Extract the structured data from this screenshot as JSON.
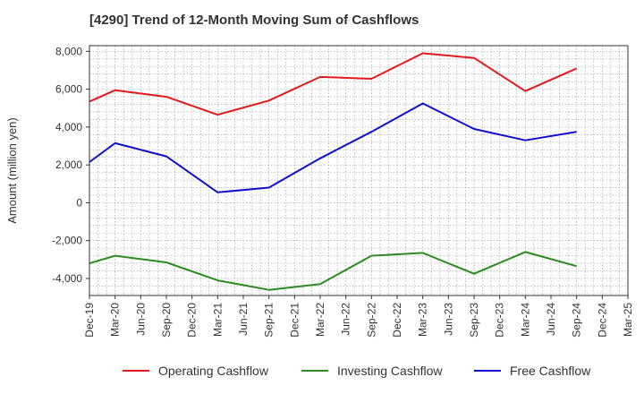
{
  "chart_data": {
    "type": "line",
    "title": "[4290]  Trend of 12-Month Moving Sum of Cashflows",
    "xlabel": "",
    "ylabel": "Amount (million yen)",
    "categories": [
      "Dec-19",
      "Mar-20",
      "Jun-20",
      "Sep-20",
      "Dec-20",
      "Mar-21",
      "Jun-21",
      "Sep-21",
      "Dec-21",
      "Mar-22",
      "Jun-22",
      "Sep-22",
      "Dec-22",
      "Mar-23",
      "Jun-23",
      "Sep-23",
      "Dec-23",
      "Mar-24",
      "Jun-24",
      "Sep-24",
      "Dec-24",
      "Mar-25"
    ],
    "ylim": [
      -4900,
      8300
    ],
    "yticks": [
      -4000,
      -2000,
      0,
      2000,
      4000,
      6000,
      8000
    ],
    "ytick_labels": [
      "-4,000",
      "-2,000",
      "0",
      "2,000",
      "4,000",
      "6,000",
      "8,000"
    ],
    "grid": true,
    "legend_position": "bottom",
    "series": [
      {
        "name": "Operating Cashflow",
        "color": "#e31a1c",
        "values": [
          5350,
          5950,
          null,
          5600,
          null,
          4650,
          null,
          5400,
          null,
          6650,
          null,
          6550,
          null,
          7900,
          null,
          7650,
          null,
          5900,
          null,
          7100,
          null,
          null
        ]
      },
      {
        "name": "Investing Cashflow",
        "color": "#2e8b22",
        "values": [
          -3200,
          -2800,
          null,
          -3150,
          null,
          -4100,
          null,
          -4600,
          null,
          -4300,
          null,
          -2800,
          null,
          -2650,
          null,
          -3750,
          null,
          -2600,
          null,
          -3350,
          null,
          null
        ]
      },
      {
        "name": "Free Cashflow",
        "color": "#1010cc",
        "values": [
          2150,
          3150,
          null,
          2450,
          null,
          550,
          null,
          800,
          null,
          2350,
          null,
          3750,
          null,
          5250,
          null,
          3900,
          null,
          3300,
          null,
          3750,
          null,
          null
        ]
      }
    ]
  }
}
